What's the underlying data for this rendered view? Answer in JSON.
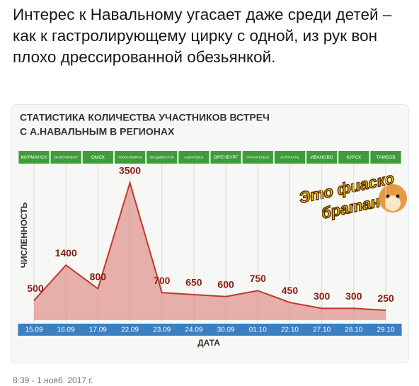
{
  "tweet": {
    "text": "Интерес к Навальному угасает даже среди детей – как к гастролирующему цирку с одной, из рук вон плохо дрессированной обезьянкой.",
    "timestamp": "8:39 - 1 нояб. 2017 г."
  },
  "sticker": {
    "lines": [
      "Это фиаско",
      "братан"
    ]
  },
  "chart_data": {
    "type": "area",
    "title": [
      "СТАТИСТИКА КОЛИЧЕСТВА УЧАСТНИКОВ ВСТРЕЧ",
      "С А.НАВАЛЬНЫМ В РЕГИОНАХ"
    ],
    "regions": [
      "МУРМАНСК",
      "ЕКАТЕРИНБУРГ",
      "ОМСК",
      "НОВОСИБИРСК",
      "ВЛАДИВОСТОК",
      "ХАБАРОВСК",
      "ОРЕНБУРГ",
      "АРХАНГЕЛЬСК",
      "АСТРАХАНЬ",
      "ИВАНОВО",
      "КУРСК",
      "ТАМБОВ"
    ],
    "categories": [
      "15.09",
      "16.09",
      "17.09",
      "22.09",
      "23.09",
      "24.09",
      "30.09",
      "01.10",
      "22.10",
      "27.10",
      "28.10",
      "29.10"
    ],
    "values": [
      500,
      1400,
      800,
      3500,
      700,
      650,
      600,
      750,
      450,
      300,
      300,
      250
    ],
    "color": "#d9756a",
    "y_label": "ЧИСЛЕННОСТЬ",
    "x_label": "ДАТА"
  }
}
